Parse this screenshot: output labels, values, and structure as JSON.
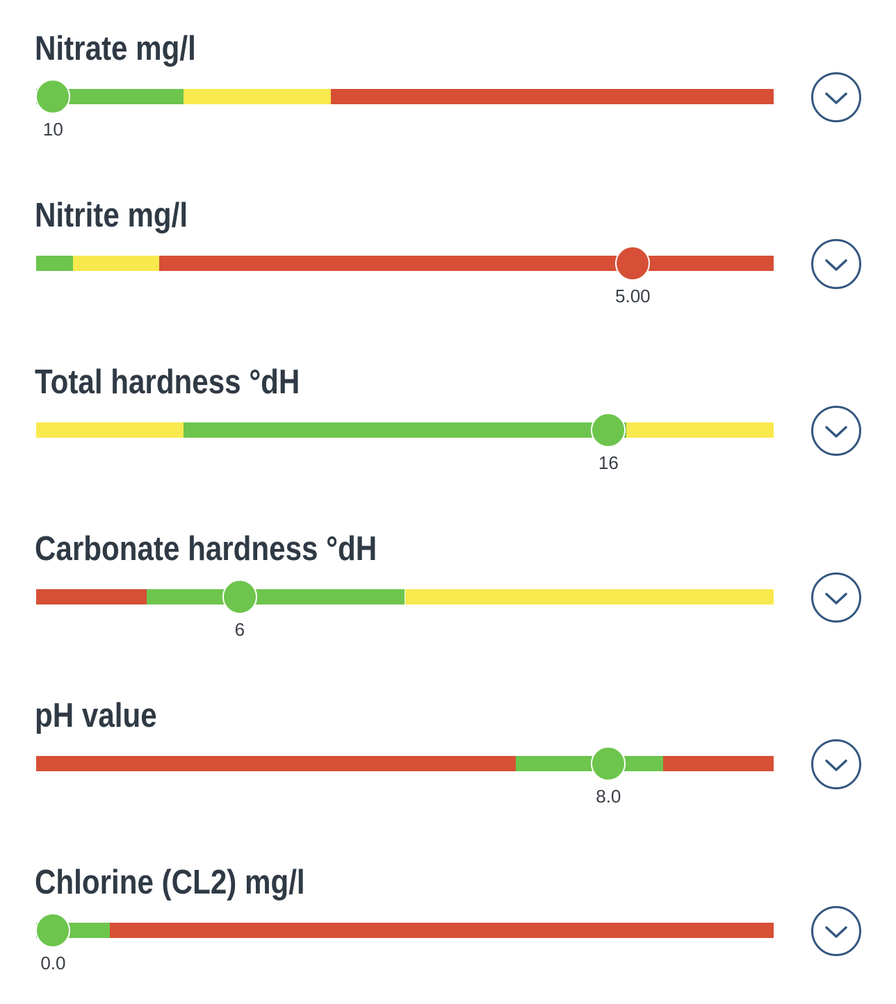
{
  "colors": {
    "good": "#6dc54d",
    "warning": "#f8e94e",
    "bad": "#d64f36",
    "title": "#2f3a45",
    "button_outline": "#34577f"
  },
  "parameters": [
    {
      "title": "Nitrate mg/l",
      "value_label": "10",
      "value_fraction": 0.023,
      "thumb_color": "good",
      "segments": [
        {
          "from": 0,
          "to": 0.2,
          "color": "good"
        },
        {
          "from": 0.2,
          "to": 0.4,
          "color": "warning"
        },
        {
          "from": 0.4,
          "to": 1.0,
          "color": "bad"
        }
      ],
      "expand_icon": "chevron-down-icon"
    },
    {
      "title": "Nitrite mg/l",
      "value_label": "5.00",
      "value_fraction": 0.809,
      "thumb_color": "bad",
      "segments": [
        {
          "from": 0,
          "to": 0.05,
          "color": "good"
        },
        {
          "from": 0.05,
          "to": 0.167,
          "color": "warning"
        },
        {
          "from": 0.167,
          "to": 1.0,
          "color": "bad"
        }
      ],
      "expand_icon": "chevron-down-icon"
    },
    {
      "title": "Total hardness °dH",
      "value_label": "16",
      "value_fraction": 0.776,
      "thumb_color": "good",
      "segments": [
        {
          "from": 0,
          "to": 0.2,
          "color": "warning"
        },
        {
          "from": 0.2,
          "to": 0.8,
          "color": "good"
        },
        {
          "from": 0.8,
          "to": 1.0,
          "color": "warning"
        }
      ],
      "expand_icon": "chevron-down-icon"
    },
    {
      "title": "Carbonate hardness °dH",
      "value_label": "6",
      "value_fraction": 0.276,
      "thumb_color": "good",
      "segments": [
        {
          "from": 0,
          "to": 0.15,
          "color": "bad"
        },
        {
          "from": 0.15,
          "to": 0.5,
          "color": "good"
        },
        {
          "from": 0.5,
          "to": 1.0,
          "color": "warning"
        }
      ],
      "expand_icon": "chevron-down-icon"
    },
    {
      "title": "pH value",
      "value_label": "8.0",
      "value_fraction": 0.776,
      "thumb_color": "good",
      "segments": [
        {
          "from": 0,
          "to": 0.65,
          "color": "bad"
        },
        {
          "from": 0.65,
          "to": 0.85,
          "color": "good"
        },
        {
          "from": 0.85,
          "to": 1.0,
          "color": "bad"
        }
      ],
      "expand_icon": "chevron-down-icon"
    },
    {
      "title": "Chlorine (CL2) mg/l",
      "value_label": "0.0",
      "value_fraction": 0.023,
      "thumb_color": "good",
      "segments": [
        {
          "from": 0,
          "to": 0.1,
          "color": "good"
        },
        {
          "from": 0.1,
          "to": 1.0,
          "color": "bad"
        }
      ],
      "expand_icon": "chevron-down-icon"
    }
  ]
}
